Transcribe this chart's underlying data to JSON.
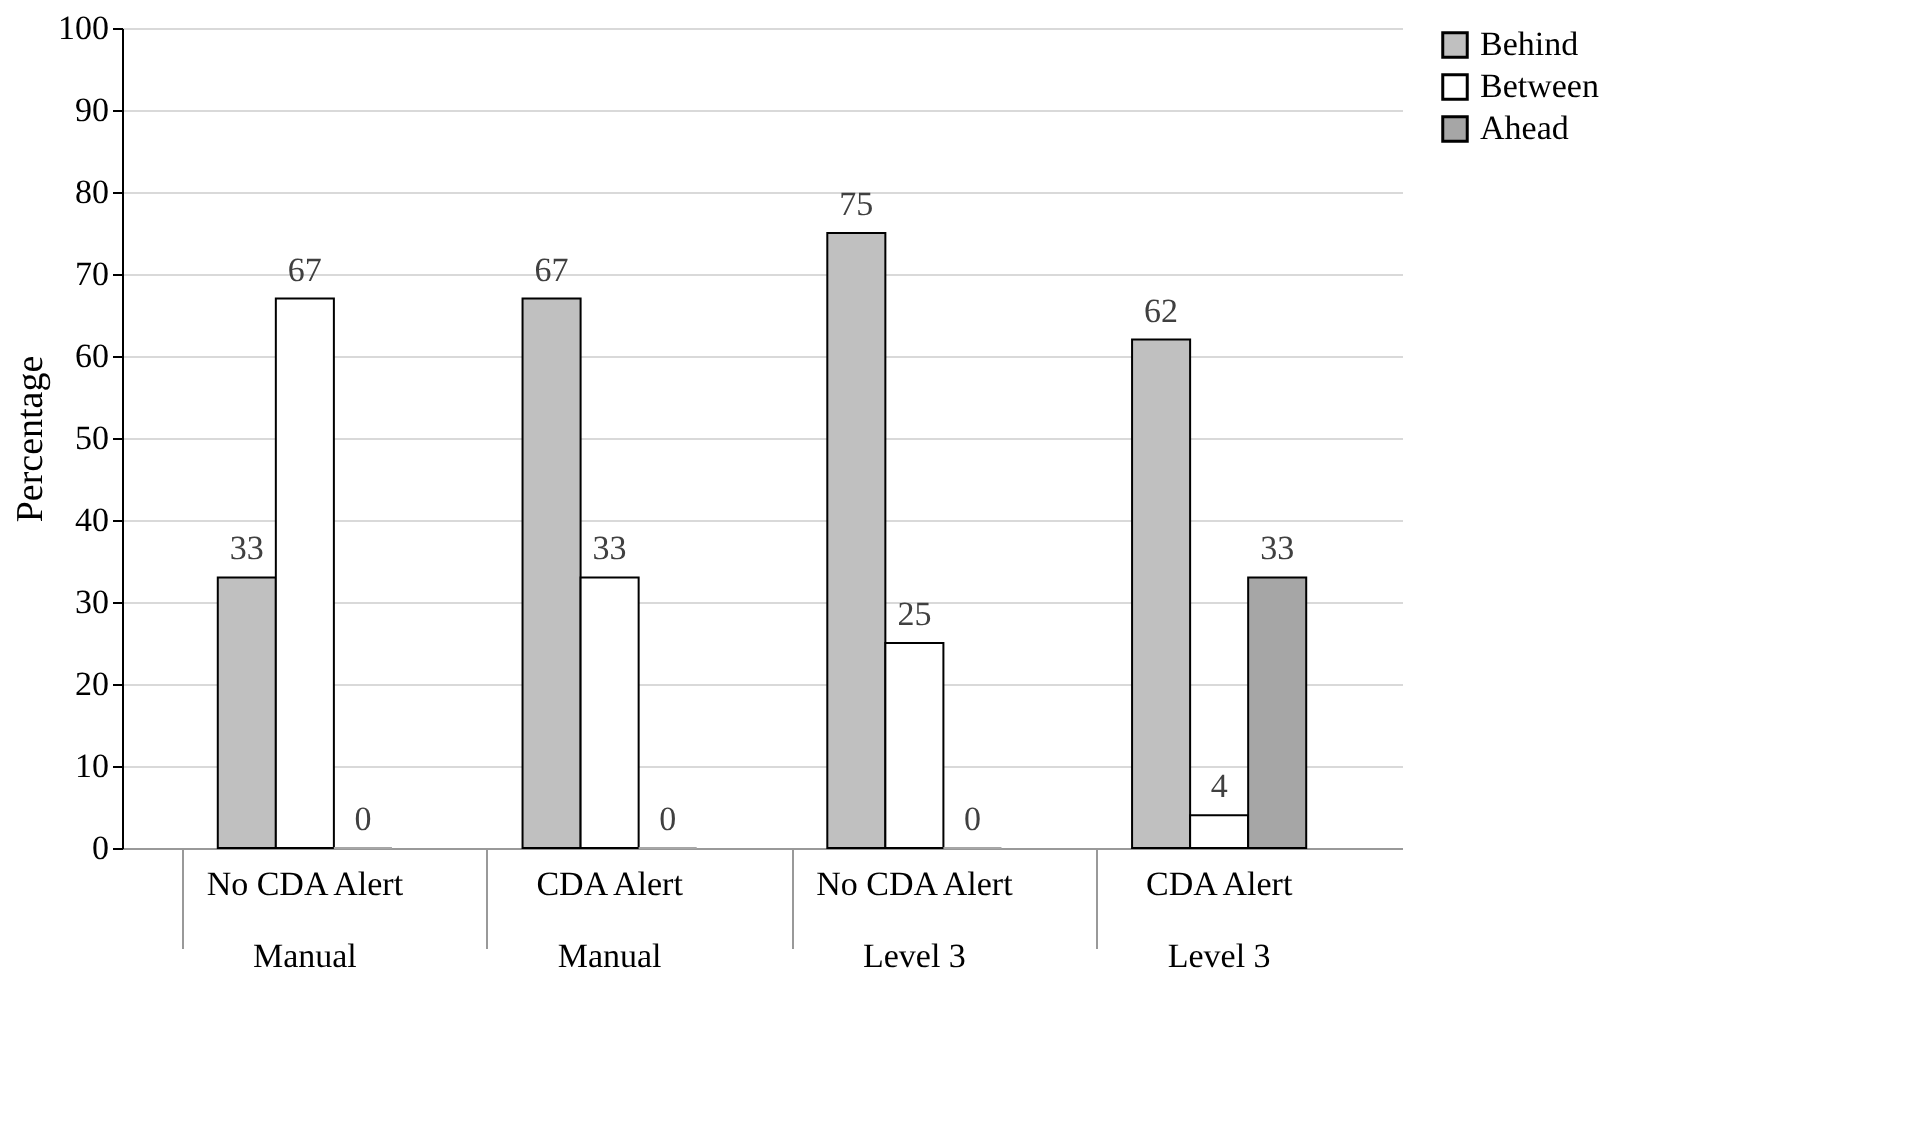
{
  "chart_data": {
    "type": "bar",
    "ylabel": "Percentage",
    "categories": [
      "No CDA Alert\nManual",
      "CDA Alert\nManual",
      "No CDA Alert\nLevel 3",
      "CDA Alert\nLevel 3"
    ],
    "series": [
      {
        "name": "Behind",
        "color": "#c0c0c0",
        "values": [
          33,
          67,
          75,
          62
        ]
      },
      {
        "name": "Between",
        "color": "#ffffff",
        "values": [
          67,
          33,
          25,
          4
        ]
      },
      {
        "name": "Ahead",
        "color": "#a6a6a6",
        "values": [
          0,
          0,
          0,
          33
        ]
      }
    ],
    "ylim": [
      0,
      100
    ],
    "yticks": [
      0,
      10,
      20,
      30,
      40,
      50,
      60,
      70,
      80,
      90,
      100
    ],
    "grid": "y",
    "legend": "right",
    "data_labels": true
  }
}
